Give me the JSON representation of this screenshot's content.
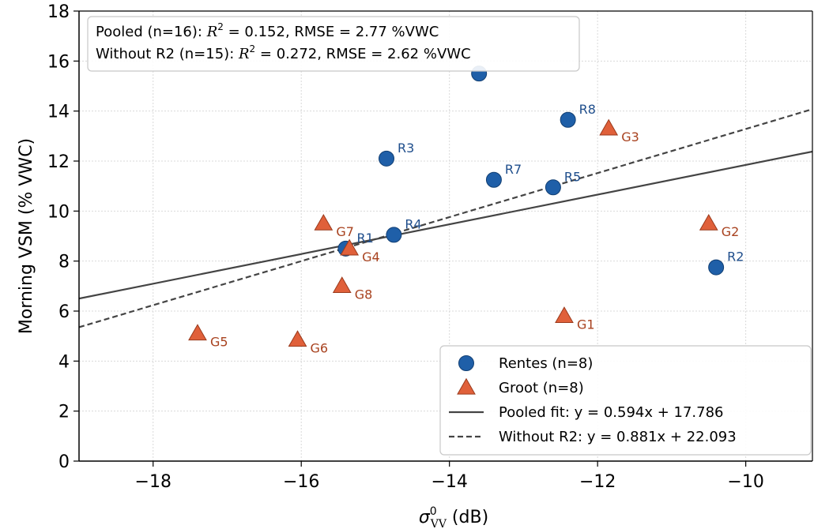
{
  "chart_data": {
    "type": "scatter",
    "title": "",
    "xlabel_main": "σ",
    "xlabel_sup": "0",
    "xlabel_sub": "VV",
    "xlabel_unit": "(dB)",
    "ylabel": "Morning VSM (% VWC)",
    "xlim": [
      -19.0,
      -9.1
    ],
    "ylim": [
      0,
      18
    ],
    "xticks": [
      -18,
      -16,
      -14,
      -12,
      -10
    ],
    "xtick_labels": [
      "−18",
      "−16",
      "−14",
      "−12",
      "−10"
    ],
    "yticks": [
      0,
      2,
      4,
      6,
      8,
      10,
      12,
      14,
      16,
      18
    ],
    "ytick_labels": [
      "0",
      "2",
      "4",
      "6",
      "8",
      "10",
      "12",
      "14",
      "16",
      "18"
    ],
    "grid": true,
    "series": [
      {
        "name": "Rentes (n=8)",
        "marker": "circle",
        "color": "#1f5fa8",
        "points": [
          {
            "label": "R1",
            "x": -15.4,
            "y": 8.5
          },
          {
            "label": "R2",
            "x": -10.4,
            "y": 7.75
          },
          {
            "label": "R3",
            "x": -14.85,
            "y": 12.1
          },
          {
            "label": "R4",
            "x": -14.75,
            "y": 9.05
          },
          {
            "label": "R5",
            "x": -12.6,
            "y": 10.95
          },
          {
            "label": "",
            "x": -13.6,
            "y": 15.5
          },
          {
            "label": "R7",
            "x": -13.4,
            "y": 11.25
          },
          {
            "label": "R8",
            "x": -12.4,
            "y": 13.65
          }
        ]
      },
      {
        "name": "Groot (n=8)",
        "marker": "triangle",
        "color": "#e0603a",
        "points": [
          {
            "label": "G1",
            "x": -12.45,
            "y": 5.8
          },
          {
            "label": "G2",
            "x": -10.5,
            "y": 9.5
          },
          {
            "label": "G3",
            "x": -11.85,
            "y": 13.3
          },
          {
            "label": "G4",
            "x": -15.35,
            "y": 8.5
          },
          {
            "label": "G5",
            "x": -17.4,
            "y": 5.1
          },
          {
            "label": "G6",
            "x": -16.05,
            "y": 4.85
          },
          {
            "label": "G7",
            "x": -15.7,
            "y": 9.5
          },
          {
            "label": "G8",
            "x": -15.45,
            "y": 7.0
          }
        ]
      }
    ],
    "fits": [
      {
        "name": "Pooled fit: y = 0.594x + 17.786",
        "slope": 0.594,
        "intercept": 17.786,
        "style": "solid",
        "color": "#444444"
      },
      {
        "name": "Without R2: y = 0.881x + 22.093",
        "slope": 0.881,
        "intercept": 22.093,
        "style": "dashed",
        "color": "#444444"
      }
    ],
    "annotation": [
      {
        "prefix": "Pooled (n=16): ",
        "r2_label": "R",
        "r2_sup": "2",
        "suffix": " = 0.152, RMSE = 2.77 %VWC"
      },
      {
        "prefix": "Without R2 (n=15): ",
        "r2_label": "R",
        "r2_sup": "2",
        "suffix": " = 0.272, RMSE = 2.62 %VWC"
      }
    ],
    "legend_position": "lower-right",
    "legend_entries": [
      {
        "label": "Rentes (n=8)",
        "kind": "circle",
        "color": "#1f5fa8"
      },
      {
        "label": "Groot (n=8)",
        "kind": "triangle",
        "color": "#e0603a"
      },
      {
        "label": "Pooled fit: y = 0.594x + 17.786",
        "kind": "solid",
        "color": "#444444"
      },
      {
        "label": "Without R2: y = 0.881x + 22.093",
        "kind": "dashed",
        "color": "#444444"
      }
    ]
  }
}
